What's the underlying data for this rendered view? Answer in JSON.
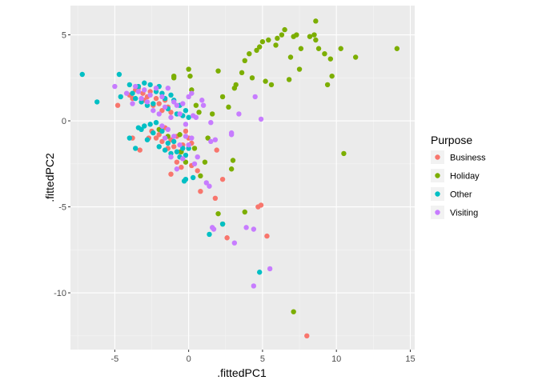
{
  "chart_data": {
    "type": "scatter",
    "xlabel": ".fittedPC1",
    "ylabel": ".fittedPC2",
    "xlim": [
      -8.0,
      15.3
    ],
    "ylim": [
      -13.3,
      6.7
    ],
    "xticks": [
      -5,
      0,
      5,
      10,
      15
    ],
    "yticks": [
      5,
      0,
      -5,
      -10
    ],
    "x_tick_labels": [
      "-5",
      "0",
      "5",
      "10",
      "15"
    ],
    "y_tick_labels": [
      "5",
      "0",
      "-5",
      "-10"
    ],
    "grid": true,
    "legend": {
      "title": "Purpose",
      "placement": "right"
    },
    "series": [
      {
        "name": "Business",
        "color": "#F8766D",
        "points": [
          [
            -4.8,
            0.9
          ],
          [
            -4.0,
            1.5
          ],
          [
            -3.8,
            1.3
          ],
          [
            -3.6,
            1.8
          ],
          [
            -3.4,
            1.9
          ],
          [
            -3.1,
            1.6
          ],
          [
            -3.0,
            1.2
          ],
          [
            -2.8,
            1.4
          ],
          [
            -2.6,
            1.7
          ],
          [
            -2.4,
            0.9
          ],
          [
            -2.2,
            1.3
          ],
          [
            -2.0,
            1.0
          ],
          [
            -1.8,
            0.6
          ],
          [
            -1.6,
            1.2
          ],
          [
            -1.4,
            0.8
          ],
          [
            -1.2,
            0.5
          ],
          [
            -3.8,
            -1.0
          ],
          [
            -3.3,
            -1.7
          ],
          [
            -2.7,
            -1.0
          ],
          [
            -2.5,
            -0.6
          ],
          [
            -2.2,
            -1.0
          ],
          [
            -2.0,
            -0.8
          ],
          [
            -1.8,
            -1.2
          ],
          [
            -1.6,
            -0.4
          ],
          [
            -1.4,
            -1.6
          ],
          [
            -1.2,
            -1.1
          ],
          [
            -1.0,
            -1.5
          ],
          [
            -0.8,
            -0.9
          ],
          [
            -0.6,
            -1.8
          ],
          [
            -0.4,
            -1.4
          ],
          [
            -0.2,
            -0.6
          ],
          [
            0.0,
            -1.0
          ],
          [
            0.2,
            -1.3
          ],
          [
            -1.2,
            -3.1
          ],
          [
            -0.8,
            -2.4
          ],
          [
            -0.5,
            -2.7
          ],
          [
            0.2,
            -2.6
          ],
          [
            0.6,
            -2.9
          ],
          [
            0.8,
            -4.1
          ],
          [
            1.8,
            -4.5
          ],
          [
            1.9,
            -1.7
          ],
          [
            2.3,
            -3.4
          ],
          [
            2.6,
            -6.8
          ],
          [
            4.7,
            -5.0
          ],
          [
            4.9,
            -4.9
          ],
          [
            5.3,
            -6.7
          ],
          [
            8.0,
            -12.5
          ]
        ]
      },
      {
        "name": "Holiday",
        "color": "#7CAE00",
        "points": [
          [
            -1.0,
            2.6
          ],
          [
            -1.0,
            2.5
          ],
          [
            0.0,
            3.0
          ],
          [
            0.1,
            2.6
          ],
          [
            0.2,
            1.8
          ],
          [
            0.5,
            0.9
          ],
          [
            0.7,
            0.5
          ],
          [
            -0.6,
            -0.8
          ],
          [
            -0.5,
            -1.8
          ],
          [
            -0.2,
            -2.4
          ],
          [
            0.4,
            -1.6
          ],
          [
            0.8,
            -3.2
          ],
          [
            1.1,
            -2.4
          ],
          [
            1.3,
            -1.0
          ],
          [
            1.6,
            0.4
          ],
          [
            2.0,
            2.9
          ],
          [
            2.3,
            1.4
          ],
          [
            2.7,
            0.8
          ],
          [
            2.9,
            -2.8
          ],
          [
            3.0,
            -2.3
          ],
          [
            3.1,
            1.9
          ],
          [
            3.2,
            2.1
          ],
          [
            3.6,
            2.8
          ],
          [
            3.8,
            3.5
          ],
          [
            4.1,
            3.9
          ],
          [
            4.3,
            2.5
          ],
          [
            4.6,
            4.1
          ],
          [
            4.8,
            4.3
          ],
          [
            5.0,
            4.6
          ],
          [
            5.2,
            2.3
          ],
          [
            5.4,
            4.7
          ],
          [
            5.6,
            2.1
          ],
          [
            5.9,
            4.4
          ],
          [
            6.0,
            4.8
          ],
          [
            6.3,
            5.0
          ],
          [
            6.5,
            5.3
          ],
          [
            6.8,
            2.4
          ],
          [
            6.9,
            3.7
          ],
          [
            7.1,
            4.9
          ],
          [
            7.3,
            5.0
          ],
          [
            7.5,
            3.0
          ],
          [
            7.6,
            4.2
          ],
          [
            8.2,
            4.9
          ],
          [
            8.5,
            5.0
          ],
          [
            8.6,
            5.8
          ],
          [
            8.6,
            4.7
          ],
          [
            8.8,
            4.2
          ],
          [
            9.2,
            3.9
          ],
          [
            9.4,
            2.1
          ],
          [
            9.6,
            3.6
          ],
          [
            9.7,
            2.6
          ],
          [
            10.3,
            4.2
          ],
          [
            10.5,
            -1.9
          ],
          [
            11.3,
            3.7
          ],
          [
            14.1,
            4.2
          ],
          [
            2.0,
            -5.4
          ],
          [
            2.3,
            -6.0
          ],
          [
            3.8,
            -5.3
          ],
          [
            7.1,
            -11.1
          ],
          [
            -2.0,
            -0.5
          ],
          [
            -1.4,
            -0.9
          ]
        ]
      },
      {
        "name": "Other",
        "color": "#00BFC4",
        "points": [
          [
            -7.2,
            2.7
          ],
          [
            -6.2,
            1.1
          ],
          [
            -4.7,
            2.7
          ],
          [
            -4.6,
            1.4
          ],
          [
            -4.0,
            2.1
          ],
          [
            -3.8,
            1.6
          ],
          [
            -3.6,
            1.3
          ],
          [
            -3.4,
            2.0
          ],
          [
            -3.2,
            1.1
          ],
          [
            -3.0,
            2.2
          ],
          [
            -2.8,
            0.9
          ],
          [
            -2.6,
            2.1
          ],
          [
            -2.4,
            1.0
          ],
          [
            -2.2,
            1.7
          ],
          [
            -2.0,
            2.0
          ],
          [
            -1.8,
            1.6
          ],
          [
            -1.6,
            1.3
          ],
          [
            -1.4,
            0.7
          ],
          [
            -1.2,
            1.5
          ],
          [
            -1.0,
            1.2
          ],
          [
            -0.8,
            0.4
          ],
          [
            -0.6,
            0.9
          ],
          [
            -0.4,
            0.3
          ],
          [
            -0.2,
            0.6
          ],
          [
            0.0,
            0.2
          ],
          [
            -4.0,
            -1.0
          ],
          [
            -3.6,
            -1.6
          ],
          [
            -3.4,
            -0.4
          ],
          [
            -3.2,
            -0.5
          ],
          [
            -3.0,
            -0.3
          ],
          [
            -2.8,
            -1.1
          ],
          [
            -2.6,
            -0.2
          ],
          [
            -2.4,
            -0.7
          ],
          [
            -2.2,
            -0.1
          ],
          [
            -2.0,
            -1.5
          ],
          [
            -1.8,
            -0.6
          ],
          [
            -1.6,
            -1.7
          ],
          [
            -1.4,
            -1.3
          ],
          [
            -1.2,
            -1.9
          ],
          [
            -1.0,
            -1.2
          ],
          [
            -0.8,
            -1.8
          ],
          [
            -0.6,
            -2.1
          ],
          [
            -0.4,
            -1.6
          ],
          [
            -0.2,
            -2.0
          ],
          [
            0.0,
            -1.6
          ],
          [
            -0.2,
            -3.4
          ],
          [
            -0.3,
            -3.5
          ],
          [
            0.3,
            -3.3
          ],
          [
            1.4,
            -6.6
          ],
          [
            2.3,
            -6.0
          ],
          [
            4.8,
            -8.8
          ]
        ]
      },
      {
        "name": "Visiting",
        "color": "#C77CFF",
        "points": [
          [
            -5.0,
            2.0
          ],
          [
            -4.2,
            1.6
          ],
          [
            -3.8,
            1.0
          ],
          [
            -3.6,
            2.0
          ],
          [
            -3.4,
            1.7
          ],
          [
            -3.2,
            1.3
          ],
          [
            -3.0,
            1.8
          ],
          [
            -2.8,
            1.1
          ],
          [
            -2.6,
            1.5
          ],
          [
            -2.4,
            0.6
          ],
          [
            -2.2,
            1.9
          ],
          [
            -2.0,
            0.4
          ],
          [
            -1.8,
            1.4
          ],
          [
            -1.6,
            0.8
          ],
          [
            -1.4,
            1.9
          ],
          [
            -1.2,
            0.2
          ],
          [
            -1.0,
            1.1
          ],
          [
            -0.8,
            0.9
          ],
          [
            -0.6,
            0.4
          ],
          [
            -0.4,
            1.0
          ],
          [
            -0.2,
            -0.2
          ],
          [
            0.0,
            1.4
          ],
          [
            0.2,
            1.6
          ],
          [
            0.3,
            0.3
          ],
          [
            0.5,
            0.2
          ],
          [
            0.9,
            1.2
          ],
          [
            1.0,
            0.9
          ],
          [
            1.5,
            -0.1
          ],
          [
            1.5,
            -1.2
          ],
          [
            1.8,
            -1.1
          ],
          [
            -1.8,
            -0.3
          ],
          [
            -1.6,
            -1.0
          ],
          [
            -1.4,
            -0.5
          ],
          [
            -1.2,
            -2.1
          ],
          [
            -1.0,
            -0.9
          ],
          [
            -0.8,
            -2.8
          ],
          [
            -0.6,
            -1.4
          ],
          [
            -0.4,
            -2.2
          ],
          [
            -0.2,
            -0.9
          ],
          [
            0.0,
            -1.4
          ],
          [
            0.2,
            -1.0
          ],
          [
            0.4,
            -2.5
          ],
          [
            0.6,
            -2.1
          ],
          [
            1.2,
            -3.6
          ],
          [
            1.4,
            -3.8
          ],
          [
            2.9,
            -0.7
          ],
          [
            2.9,
            -0.8
          ],
          [
            3.4,
            0.4
          ],
          [
            4.5,
            1.4
          ],
          [
            4.9,
            0.1
          ],
          [
            1.6,
            -6.2
          ],
          [
            1.7,
            -6.3
          ],
          [
            3.1,
            -7.1
          ],
          [
            3.9,
            -6.2
          ],
          [
            4.4,
            -6.3
          ],
          [
            5.5,
            -8.6
          ],
          [
            4.4,
            -9.6
          ]
        ]
      }
    ]
  }
}
